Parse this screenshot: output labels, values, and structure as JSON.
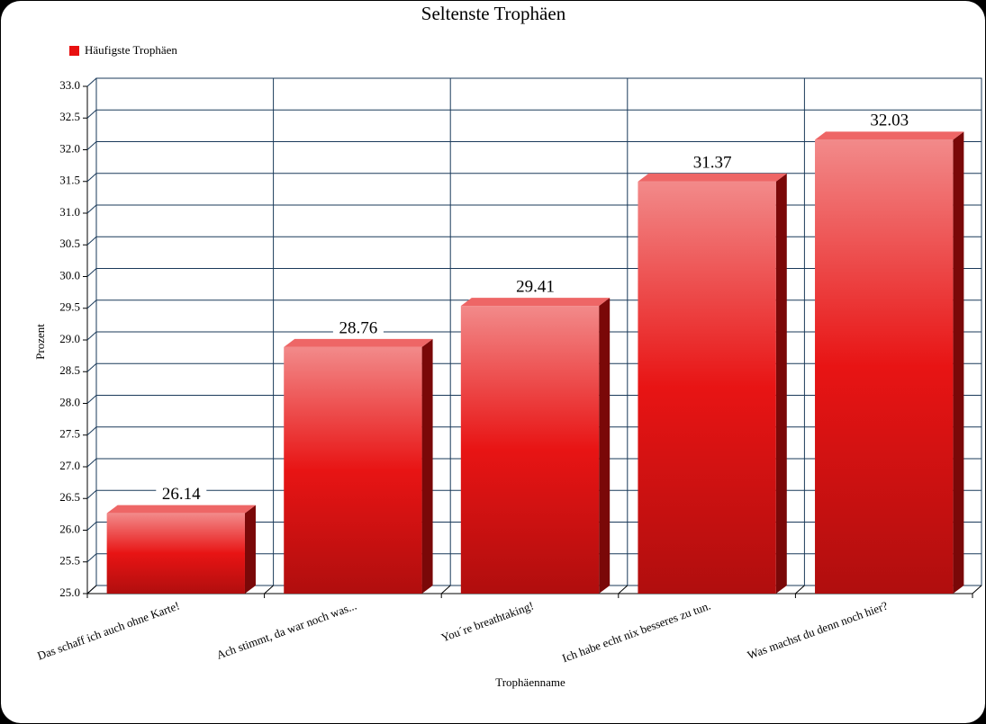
{
  "chart_data": {
    "type": "bar",
    "title": "Seltenste Trophäen",
    "x_label": "Trophäenname",
    "y_label": "Prozent",
    "categories": [
      "Das schaff ich auch ohne Karte!",
      "Ach stimmt, da war noch was...",
      "You´re breathtaking!",
      "Ich habe echt nix besseres zu tun.",
      "Was machst du denn noch hier?"
    ],
    "series": [
      {
        "name": "Häufigste Trophäen",
        "color": "#e81010",
        "values": [
          26.14,
          28.76,
          29.41,
          31.37,
          32.03
        ]
      }
    ],
    "ylim": [
      25.0,
      33.0
    ],
    "yticks": [
      {
        "value": 25.0,
        "label": "25.0"
      },
      {
        "value": 25.5,
        "label": "25.5"
      },
      {
        "value": 26.0,
        "label": "26.0"
      },
      {
        "value": 26.5,
        "label": "26.5"
      },
      {
        "value": 27.0,
        "label": "27.0"
      },
      {
        "value": 27.5,
        "label": "27.5"
      },
      {
        "value": 28.0,
        "label": "28.0"
      },
      {
        "value": 28.5,
        "label": "28.5"
      },
      {
        "value": 29.0,
        "label": "29.0"
      },
      {
        "value": 29.5,
        "label": "29.5"
      },
      {
        "value": 30.0,
        "label": "30.0"
      },
      {
        "value": 30.5,
        "label": "30.5"
      },
      {
        "value": 31.0,
        "label": "31.0"
      },
      {
        "value": 31.5,
        "label": "31.5"
      },
      {
        "value": 32.0,
        "label": "32.0"
      },
      {
        "value": 32.5,
        "label": "32.5"
      },
      {
        "value": 33.0,
        "label": "33.0"
      }
    ],
    "grid": true,
    "legend": "top-left"
  }
}
